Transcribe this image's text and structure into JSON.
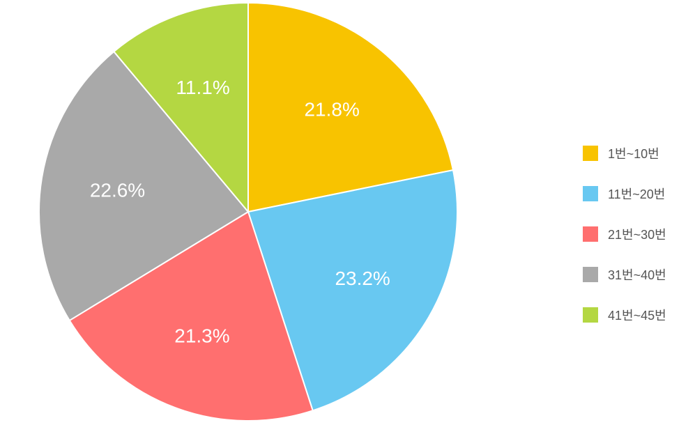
{
  "chart_data": {
    "type": "pie",
    "categories": [
      "1번~10번",
      "11번~20번",
      "21번~30번",
      "31번~40번",
      "41번~45번"
    ],
    "values": [
      21.8,
      23.2,
      21.3,
      22.6,
      11.1
    ],
    "labels": [
      "21.8%",
      "23.2%",
      "21.3%",
      "22.6%",
      "11.1%"
    ],
    "colors": [
      "#F8C300",
      "#68C8F1",
      "#FF6F6F",
      "#A9A9A9",
      "#B4D742"
    ],
    "legend_position": "right"
  }
}
